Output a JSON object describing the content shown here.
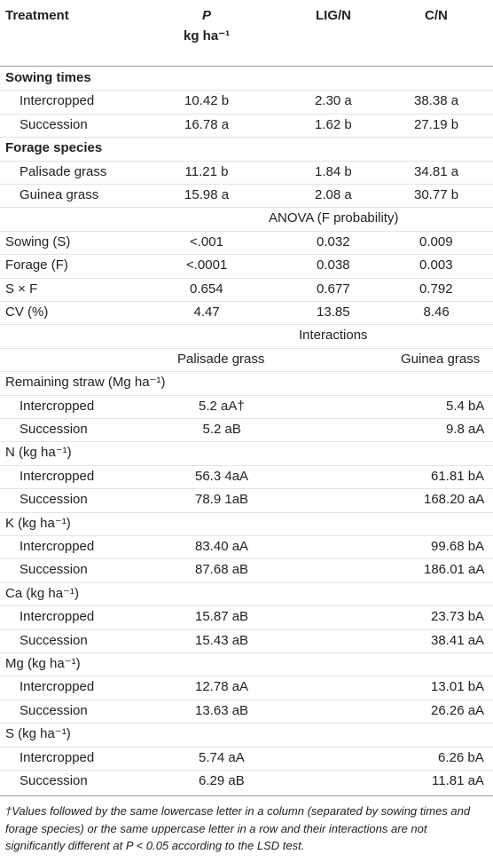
{
  "table": {
    "header": [
      "Treatment",
      "P",
      "LIG/N",
      "C/N"
    ],
    "header_unit": "kg ha⁻¹",
    "main": [
      {
        "group": "Sowing times",
        "rows": [
          [
            "Intercropped",
            "10.42 b",
            "2.30 a",
            "38.38 a"
          ],
          [
            "Succession",
            "16.78 a",
            "1.62 b",
            "27.19 b"
          ]
        ]
      },
      {
        "group": "Forage species",
        "rows": [
          [
            "Palisade grass",
            "11.21 b",
            "1.84 b",
            "34.81 a"
          ],
          [
            "Guinea grass",
            "15.98 a",
            "2.08 a",
            "30.77 b"
          ]
        ]
      }
    ],
    "anova": {
      "title": "ANOVA (F probability)",
      "rows": [
        [
          "Sowing (S)",
          "<.001",
          "0.032",
          "0.009"
        ],
        [
          "Forage (F)",
          "<.0001",
          "0.038",
          "0.003"
        ],
        [
          "S × F",
          "0.654",
          "0.677",
          "0.792"
        ],
        [
          "CV (%)",
          "4.47",
          "13.85",
          "8.46"
        ]
      ]
    },
    "interactions": {
      "title": "Interactions",
      "columns": [
        "Palisade grass",
        "Guinea grass"
      ],
      "groups": [
        {
          "group": "Remaining straw (Mg ha⁻¹)",
          "rows": [
            [
              "Intercropped",
              "5.2 aA†",
              "5.4 bA"
            ],
            [
              "Succession",
              "5.2 aB",
              "9.8 aA"
            ]
          ]
        },
        {
          "group": "N (kg ha⁻¹)",
          "rows": [
            [
              "Intercropped",
              "56.3 4aA",
              "61.81 bA"
            ],
            [
              "Succession",
              "78.9 1aB",
              "168.20 aA"
            ]
          ]
        },
        {
          "group": "K (kg ha⁻¹)",
          "rows": [
            [
              "Intercropped",
              "83.40 aA",
              "99.68 bA"
            ],
            [
              "Succession",
              "87.68 aB",
              "186.01 aA"
            ]
          ]
        },
        {
          "group": "Ca (kg ha⁻¹)",
          "rows": [
            [
              "Intercropped",
              "15.87 aB",
              "23.73 bA"
            ],
            [
              "Succession",
              "15.43 aB",
              "38.41 aA"
            ]
          ]
        },
        {
          "group": "Mg (kg ha⁻¹)",
          "rows": [
            [
              "Intercropped",
              "12.78 aA",
              "13.01 bA"
            ],
            [
              "Succession",
              "13.63 aB",
              "26.26 aA"
            ]
          ]
        },
        {
          "group": "S (kg ha⁻¹)",
          "rows": [
            [
              "Intercropped",
              "5.74 aA",
              "6.26 bA"
            ],
            [
              "Succession",
              "6.29 aB",
              "11.81 aA"
            ]
          ]
        }
      ]
    },
    "footnote": "†Values followed by the same lowercase letter in a column (separated by sowing times and forage species) or the same uppercase letter in a row and their interactions are not significantly different at P < 0.05 according to the LSD test."
  }
}
